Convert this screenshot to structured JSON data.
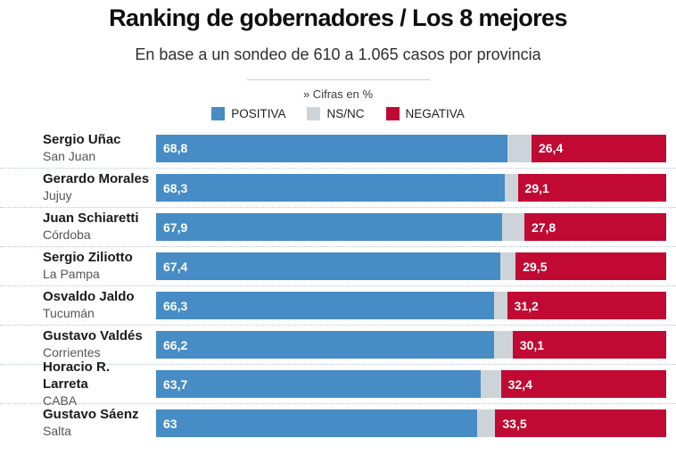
{
  "header": {
    "title": "Ranking de gobernadores / Los 8 mejores",
    "subtitle": "En base a un sondeo de 610 a 1.065 casos por provincia",
    "note": "» Cifras en %"
  },
  "colors": {
    "positiva": "#478cc4",
    "nsnc": "#ccd4da",
    "negativa": "#c00a33"
  },
  "legend": {
    "items": [
      {
        "label": "POSITIVA",
        "color_key": "positiva"
      },
      {
        "label": "NS/NC",
        "color_key": "nsnc"
      },
      {
        "label": "NEGATIVA",
        "color_key": "negativa"
      }
    ]
  },
  "chart_data": {
    "type": "bar",
    "orientation": "horizontal",
    "stacked": true,
    "unit": "%",
    "xlim": [
      0,
      100
    ],
    "title": "Ranking de gobernadores / Los 8 mejores",
    "subtitle": "En base a un sondeo de 610 a 1.065 casos por provincia",
    "legend_position": "top",
    "grid": false,
    "categories": [
      "Sergio Uñac (San Juan)",
      "Gerardo Morales (Jujuy)",
      "Juan Schiaretti (Córdoba)",
      "Sergio Ziliotto (La Pampa)",
      "Osvaldo Jaldo (Tucumán)",
      "Gustavo Valdés (Corrientes)",
      "Horacio R. Larreta (CABA)",
      "Gustavo Sáenz (Salta)"
    ],
    "series": [
      {
        "name": "POSITIVA",
        "color": "#478cc4",
        "values": [
          68.8,
          68.3,
          67.9,
          67.4,
          66.3,
          66.2,
          63.7,
          63
        ]
      },
      {
        "name": "NS/NC",
        "color": "#ccd4da",
        "values": [
          4.8,
          2.6,
          4.3,
          3.1,
          2.5,
          3.7,
          3.9,
          3.5
        ]
      },
      {
        "name": "NEGATIVA",
        "color": "#c00a33",
        "values": [
          26.4,
          29.1,
          27.8,
          29.5,
          31.2,
          30.1,
          32.4,
          33.5
        ]
      }
    ],
    "rows": [
      {
        "name": "Sergio Uñac",
        "province": "San Juan",
        "positiva": 68.8,
        "nsnc": 4.8,
        "negativa": 26.4,
        "positiva_label": "68,8",
        "negativa_label": "26,4"
      },
      {
        "name": "Gerardo Morales",
        "province": "Jujuy",
        "positiva": 68.3,
        "nsnc": 2.6,
        "negativa": 29.1,
        "positiva_label": "68,3",
        "negativa_label": "29,1"
      },
      {
        "name": "Juan Schiaretti",
        "province": "Córdoba",
        "positiva": 67.9,
        "nsnc": 4.3,
        "negativa": 27.8,
        "positiva_label": "67,9",
        "negativa_label": "27,8"
      },
      {
        "name": "Sergio Ziliotto",
        "province": "La Pampa",
        "positiva": 67.4,
        "nsnc": 3.1,
        "negativa": 29.5,
        "positiva_label": "67,4",
        "negativa_label": "29,5"
      },
      {
        "name": "Osvaldo Jaldo",
        "province": "Tucumán",
        "positiva": 66.3,
        "nsnc": 2.5,
        "negativa": 31.2,
        "positiva_label": "66,3",
        "negativa_label": "31,2"
      },
      {
        "name": "Gustavo Valdés",
        "province": "Corrientes",
        "positiva": 66.2,
        "nsnc": 3.7,
        "negativa": 30.1,
        "positiva_label": "66,2",
        "negativa_label": "30,1"
      },
      {
        "name": "Horacio R. Larreta",
        "province": "CABA",
        "positiva": 63.7,
        "nsnc": 3.9,
        "negativa": 32.4,
        "positiva_label": "63,7",
        "negativa_label": "32,4"
      },
      {
        "name": "Gustavo Sáenz",
        "province": "Salta",
        "positiva": 63,
        "nsnc": 3.5,
        "negativa": 33.5,
        "positiva_label": "63",
        "negativa_label": "33,5"
      }
    ]
  }
}
